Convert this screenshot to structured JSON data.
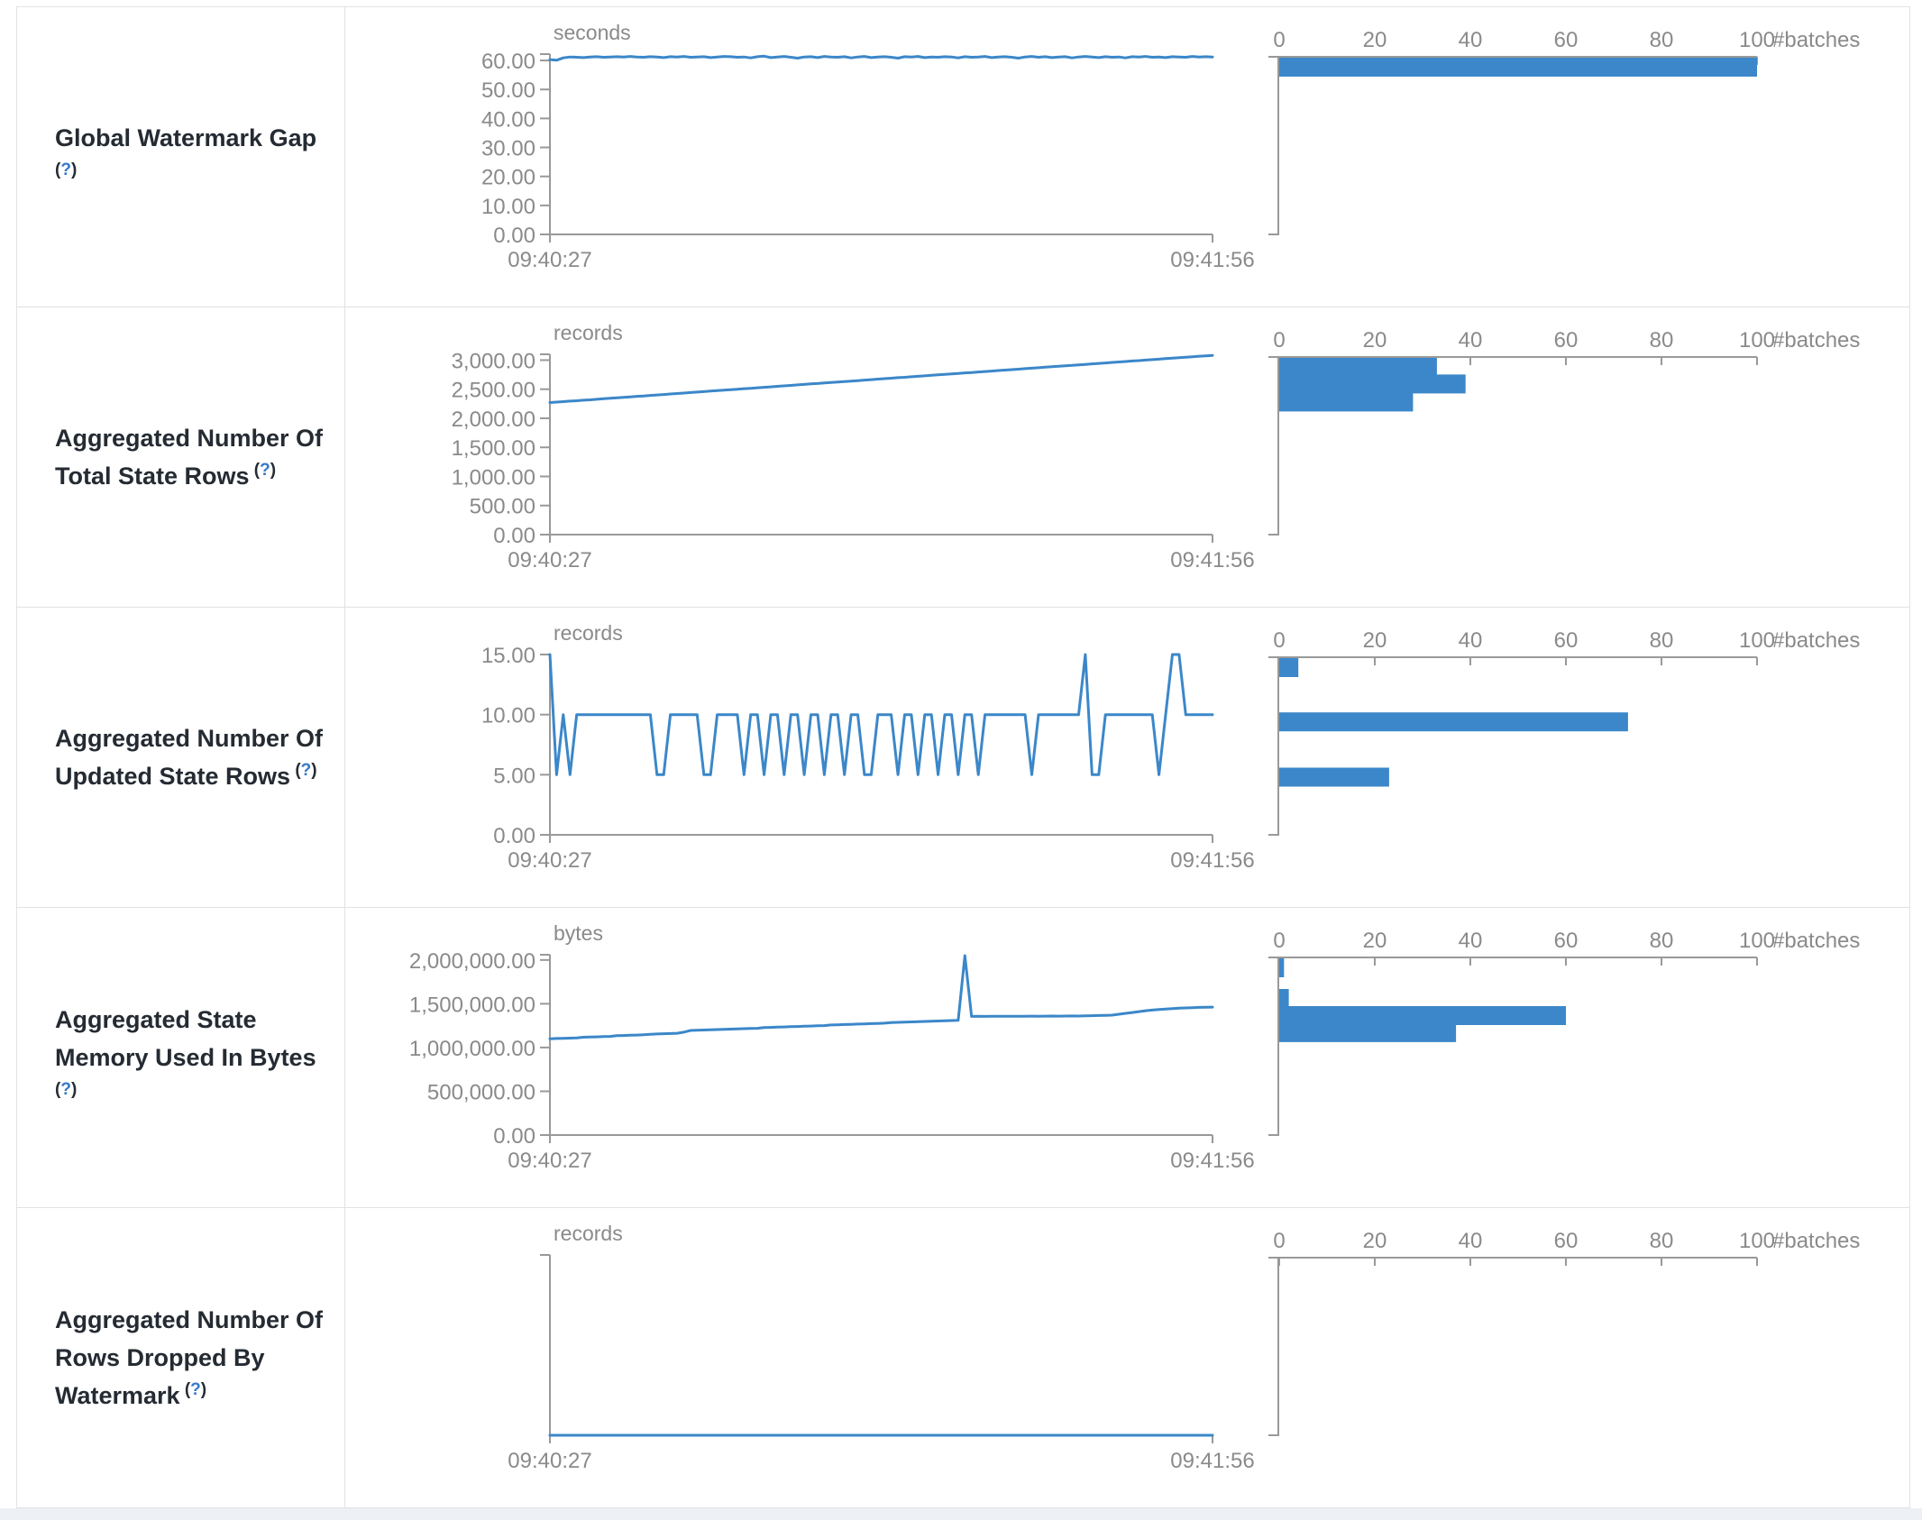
{
  "colors": {
    "accent": "#3b87c9",
    "axis": "#999999",
    "tick_text": "#8a8a8a",
    "label_text": "#252b33",
    "help_blue": "#3579c8",
    "border": "#e2e2e2",
    "footer_strip": "#edf0f4"
  },
  "time_axis": {
    "start": "09:40:27",
    "end": "09:41:56"
  },
  "hist_axis": {
    "tick_labels": [
      "0",
      "20",
      "40",
      "60",
      "80",
      "100"
    ],
    "tick_values": [
      0,
      20,
      40,
      60,
      80,
      100
    ],
    "unit_label": "#batches",
    "max": 100
  },
  "rows": [
    {
      "label": "Global Watermark Gap",
      "help": "?",
      "unit": "seconds",
      "ymax": 62.2,
      "yticks": [
        {
          "v": 60,
          "label": "60.00"
        },
        {
          "v": 50,
          "label": "50.00"
        },
        {
          "v": 40,
          "label": "40.00"
        },
        {
          "v": 30,
          "label": "30.00"
        },
        {
          "v": 20,
          "label": "20.00"
        },
        {
          "v": 10,
          "label": "10.00"
        },
        {
          "v": 0,
          "label": "0.00"
        }
      ],
      "series": [
        60.3,
        60.1,
        60.9,
        61.2,
        61.1,
        61.0,
        61.2,
        61.3,
        61.1,
        61.2,
        61.3,
        61.2,
        61.4,
        61.2,
        61.1,
        61.3,
        61.2,
        61.0,
        61.3,
        61.2,
        61.4,
        61.1,
        61.2,
        61.3,
        61.0,
        61.2,
        61.4,
        61.3,
        61.1,
        61.2,
        60.9,
        61.3,
        61.5,
        61.0,
        61.2,
        61.4,
        61.1,
        60.8,
        61.2,
        61.3,
        61.0,
        61.4,
        61.2,
        61.1,
        61.3,
        60.9,
        61.2,
        61.4,
        61.0,
        61.2,
        61.3,
        61.1,
        60.8,
        61.3,
        61.2,
        61.4,
        61.0,
        61.2,
        61.1,
        61.3,
        61.2,
        60.9,
        61.3,
        61.1,
        61.2,
        61.4,
        61.0,
        61.2,
        61.3,
        61.1,
        60.8,
        61.2,
        61.4,
        61.1,
        61.3,
        61.0,
        61.2,
        61.3,
        60.9,
        61.2,
        61.4,
        61.2,
        61.0,
        61.3,
        61.1,
        61.2,
        60.9,
        61.3,
        61.2,
        61.4,
        61.1,
        61.2,
        61.0,
        61.3,
        61.2,
        61.1,
        61.4,
        61.2,
        61.3,
        61.2
      ],
      "hist": [
        {
          "bin": 61,
          "count": 100
        }
      ]
    },
    {
      "label": "Aggregated Number Of Total State Rows",
      "help": "?",
      "unit": "records",
      "ymax": 3100,
      "yticks": [
        {
          "v": 3000,
          "label": "3,000.00"
        },
        {
          "v": 2500,
          "label": "2,500.00"
        },
        {
          "v": 2000,
          "label": "2,000.00"
        },
        {
          "v": 1500,
          "label": "1,500.00"
        },
        {
          "v": 1000,
          "label": "1,000.00"
        },
        {
          "v": 500,
          "label": "500.00"
        },
        {
          "v": 0,
          "label": "0.00"
        }
      ],
      "series": [
        2270,
        2279,
        2286,
        2295,
        2302,
        2311,
        2318,
        2327,
        2336,
        2343,
        2352,
        2360,
        2368,
        2377,
        2384,
        2393,
        2401,
        2409,
        2418,
        2426,
        2434,
        2443,
        2450,
        2459,
        2467,
        2475,
        2484,
        2492,
        2500,
        2509,
        2516,
        2525,
        2533,
        2541,
        2550,
        2557,
        2566,
        2574,
        2582,
        2591,
        2598,
        2607,
        2615,
        2623,
        2632,
        2640,
        2648,
        2657,
        2664,
        2673,
        2681,
        2689,
        2698,
        2705,
        2714,
        2722,
        2730,
        2739,
        2746,
        2755,
        2763,
        2771,
        2780,
        2787,
        2796,
        2804,
        2812,
        2821,
        2828,
        2837,
        2845,
        2853,
        2862,
        2869,
        2878,
        2886,
        2894,
        2903,
        2910,
        2919,
        2927,
        2935,
        2944,
        2951,
        2960,
        2968,
        2976,
        2985,
        2992,
        3001,
        3009,
        3017,
        3026,
        3033,
        3042,
        3050,
        3058,
        3067,
        3074,
        3082
      ],
      "hist": [
        {
          "bin": 2890,
          "count": 33
        },
        {
          "bin": 2590,
          "count": 39
        },
        {
          "bin": 2280,
          "count": 28
        }
      ]
    },
    {
      "label": "Aggregated Number Of Updated State Rows",
      "help": "?",
      "unit": "records",
      "ymax": 15,
      "yticks": [
        {
          "v": 15,
          "label": "15.00"
        },
        {
          "v": 10,
          "label": "10.00"
        },
        {
          "v": 5,
          "label": "5.00"
        },
        {
          "v": 0,
          "label": "0.00"
        }
      ],
      "series": [
        15,
        5,
        10,
        5,
        10,
        10,
        10,
        10,
        10,
        10,
        10,
        10,
        10,
        10,
        10,
        10,
        5,
        5,
        10,
        10,
        10,
        10,
        10,
        5,
        5,
        10,
        10,
        10,
        10,
        5,
        10,
        10,
        5,
        10,
        10,
        5,
        10,
        10,
        5,
        10,
        10,
        5,
        10,
        10,
        5,
        10,
        10,
        5,
        5,
        10,
        10,
        10,
        5,
        10,
        10,
        5,
        10,
        10,
        5,
        10,
        10,
        5,
        10,
        10,
        5,
        10,
        10,
        10,
        10,
        10,
        10,
        10,
        5,
        10,
        10,
        10,
        10,
        10,
        10,
        10,
        15,
        5,
        5,
        10,
        10,
        10,
        10,
        10,
        10,
        10,
        10,
        5,
        10,
        15,
        15,
        10,
        10,
        10,
        10,
        10
      ],
      "hist": [
        {
          "bin": 14,
          "count": 4
        },
        {
          "bin": 9.4,
          "count": 73
        },
        {
          "bin": 4.8,
          "count": 23
        }
      ]
    },
    {
      "label": "Aggregated State Memory Used In Bytes",
      "help": "?",
      "unit": "bytes",
      "ymax": 2060000,
      "yticks": [
        {
          "v": 2000000,
          "label": "2,000,000.00"
        },
        {
          "v": 1500000,
          "label": "1,500,000.00"
        },
        {
          "v": 1000000,
          "label": "1,000,000.00"
        },
        {
          "v": 500000,
          "label": "500,000.00"
        },
        {
          "v": 0,
          "label": "0.00"
        }
      ],
      "series": [
        1100000,
        1103000,
        1105000,
        1107000,
        1110000,
        1118000,
        1120000,
        1122000,
        1125000,
        1127000,
        1135000,
        1137000,
        1140000,
        1142000,
        1145000,
        1152000,
        1155000,
        1158000,
        1160000,
        1163000,
        1175000,
        1195000,
        1198000,
        1200000,
        1202000,
        1205000,
        1207000,
        1210000,
        1212000,
        1215000,
        1218000,
        1220000,
        1228000,
        1230000,
        1233000,
        1235000,
        1238000,
        1240000,
        1243000,
        1245000,
        1248000,
        1250000,
        1258000,
        1260000,
        1263000,
        1265000,
        1268000,
        1270000,
        1273000,
        1275000,
        1278000,
        1285000,
        1288000,
        1290000,
        1293000,
        1295000,
        1298000,
        1300000,
        1303000,
        1305000,
        1308000,
        1310000,
        2050000,
        1355000,
        1356000,
        1355000,
        1357000,
        1356000,
        1357000,
        1358000,
        1357000,
        1358000,
        1359000,
        1358000,
        1359000,
        1360000,
        1359000,
        1360000,
        1361000,
        1360000,
        1362000,
        1364000,
        1366000,
        1368000,
        1370000,
        1380000,
        1390000,
        1400000,
        1410000,
        1420000,
        1428000,
        1435000,
        1440000,
        1445000,
        1450000,
        1452000,
        1455000,
        1458000,
        1460000,
        1462000
      ],
      "hist": [
        {
          "bin": 1930000,
          "count": 1
        },
        {
          "bin": 1560000,
          "count": 2
        },
        {
          "bin": 1365000,
          "count": 60
        },
        {
          "bin": 1170000,
          "count": 37
        }
      ]
    },
    {
      "label": "Aggregated Number Of Rows Dropped By Watermark",
      "help": "?",
      "unit": "records",
      "ymax": 1,
      "yticks": [],
      "series": [
        0,
        0
      ],
      "hist": []
    }
  ]
}
